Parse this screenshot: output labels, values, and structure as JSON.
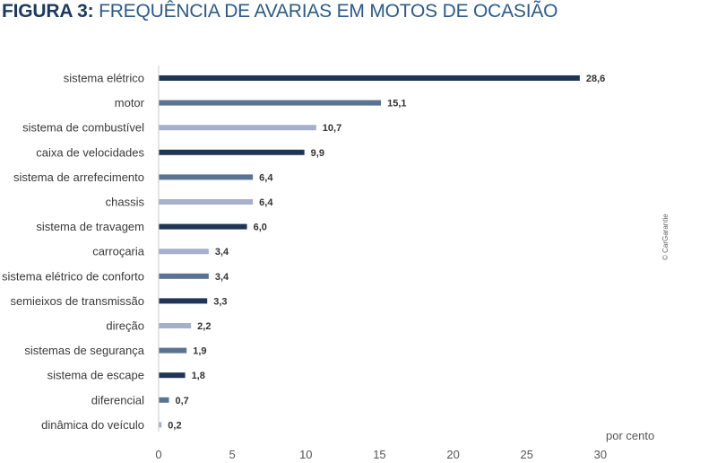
{
  "chart_data": {
    "type": "bar",
    "orientation": "horizontal",
    "title_lead": "FIGURA 3:",
    "title_rest": "FREQUÊNCIA DE AVARIAS EM MOTOS DE OCASIÃO",
    "categories": [
      "sistema elétrico",
      "motor",
      "sistema de combustível",
      "caixa de velocidades",
      "sistema de arrefecimento",
      "chassis",
      "sistema de travagem",
      "carroçaria",
      "sistema elétrico de conforto",
      "semieixos de transmissão",
      "direção",
      "sistemas de segurança",
      "sistema de escape",
      "diferencial",
      "dinâmica do veículo"
    ],
    "values": [
      28.6,
      15.1,
      10.7,
      9.9,
      6.4,
      6.4,
      6.0,
      3.4,
      3.4,
      3.3,
      2.2,
      1.9,
      1.8,
      0.7,
      0.2
    ],
    "value_labels": [
      "28,6",
      "15,1",
      "10,7",
      "9,9",
      "6,4",
      "6,4",
      "6,0",
      "3,4",
      "3,4",
      "3,3",
      "2,2",
      "1,9",
      "1,8",
      "0,7",
      "0,2"
    ],
    "bar_colors": [
      "#1f3556",
      "#5a7393",
      "#a7b0cb",
      "#1f3556",
      "#5a7393",
      "#a7b0cb",
      "#1f3556",
      "#a7b0cb",
      "#5a7393",
      "#1f3556",
      "#a7b0cb",
      "#5a7393",
      "#1f3556",
      "#5a7393",
      "#a7b0cb"
    ],
    "xlabel": "por cento",
    "xlim": [
      0,
      30
    ],
    "xticks": [
      "0",
      "5",
      "10",
      "15",
      "20",
      "25",
      "30"
    ],
    "grid": false,
    "credit": "© CarGarantie"
  }
}
